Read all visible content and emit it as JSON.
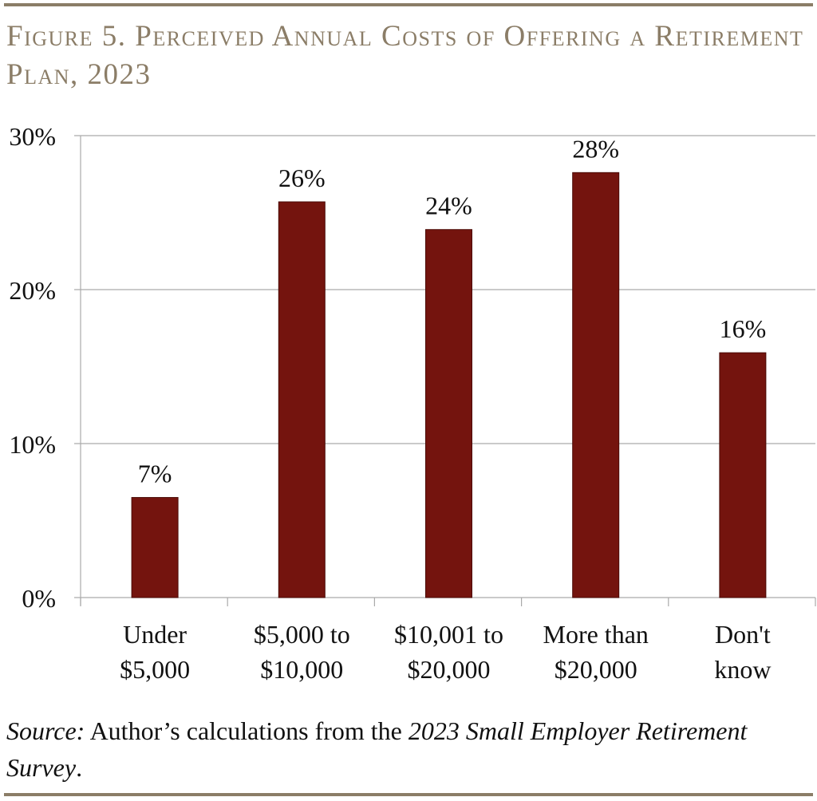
{
  "title": "Figure 5. Perceived Annual Costs of Offering a Retirement Plan, 2023",
  "source": {
    "label": "Source:",
    "text": " Author’s calculations from the ",
    "italic": "2023 Small Employer Retirement Survey",
    "end": "."
  },
  "chart_data": {
    "type": "bar",
    "categories": [
      [
        "Under",
        "$5,000"
      ],
      [
        "$5,000 to",
        "$10,000"
      ],
      [
        "$10,001 to",
        "$20,000"
      ],
      [
        "More than",
        "$20,000"
      ],
      [
        "Don't",
        "know"
      ]
    ],
    "values": [
      6.5,
      25.7,
      23.9,
      27.6,
      15.9
    ],
    "data_labels": [
      "7%",
      "26%",
      "24%",
      "28%",
      "16%"
    ],
    "yticks": [
      0,
      10,
      20,
      30
    ],
    "ytick_labels": [
      "0%",
      "10%",
      "20%",
      "30%"
    ],
    "ylim": [
      0,
      30
    ],
    "grid": true,
    "bar_color": "#74140e",
    "title_color": "#8b7d67"
  }
}
